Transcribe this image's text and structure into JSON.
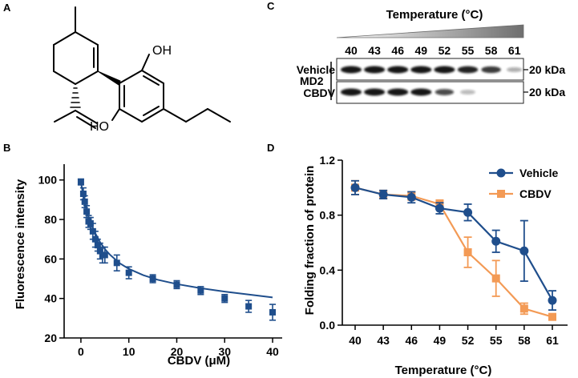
{
  "panels": {
    "a": "A",
    "b": "B",
    "c": "C",
    "d": "D"
  },
  "structure": {
    "oh_top": "OH",
    "oh_left": "HO"
  },
  "western_blot": {
    "title": "Temperature (°C)",
    "temperatures": [
      "40",
      "43",
      "46",
      "49",
      "52",
      "55",
      "58",
      "61"
    ],
    "protein": "MD2",
    "rows": [
      {
        "label": "Vehicle",
        "marker": "20 kDa",
        "intensities": [
          1.0,
          1.0,
          1.0,
          1.0,
          1.0,
          0.95,
          0.85,
          0.35
        ]
      },
      {
        "label": "CBDV",
        "marker": "20 kDa",
        "intensities": [
          1.0,
          1.0,
          1.0,
          1.0,
          0.75,
          0.3,
          0.0,
          0.0
        ]
      }
    ],
    "colors": {
      "band": "#161616",
      "gradient_start": "#ffffff",
      "gradient_end": "#6e6e6e"
    }
  },
  "chart_data": [
    {
      "type": "scatter",
      "title": "",
      "xlabel": "CBDV (μM)",
      "ylabel": "Fluorescence intensity",
      "xlim": [
        -3.5,
        42
      ],
      "ylim": [
        20,
        108
      ],
      "xticks": [
        0,
        10,
        20,
        30,
        40
      ],
      "yticks": [
        20,
        40,
        60,
        80,
        100
      ],
      "x": [
        0,
        0.5,
        0.8,
        1.2,
        1.6,
        2.0,
        2.5,
        3.0,
        3.5,
        4.0,
        4.5,
        5.0,
        7.5,
        10,
        15,
        20,
        25,
        30,
        35,
        40
      ],
      "y": [
        99,
        93,
        89,
        84,
        79,
        78,
        74,
        70,
        67,
        64,
        62,
        62,
        58,
        53,
        50,
        47,
        44,
        40,
        36,
        33
      ],
      "err": [
        1.5,
        3,
        3,
        3,
        3,
        3,
        4,
        4,
        3,
        4,
        4,
        4,
        4,
        3,
        2,
        2,
        2,
        2,
        3,
        4
      ],
      "fit": {
        "x": [
          0,
          0.5,
          1,
          1.5,
          2,
          3,
          4,
          5,
          6,
          8,
          10,
          13,
          16,
          20,
          25,
          30,
          35,
          40
        ],
        "y": [
          99,
          92,
          86.5,
          82,
          78.5,
          73,
          68.5,
          65,
          62.3,
          58,
          55,
          51.8,
          49.5,
          47.3,
          45.2,
          43.5,
          42,
          40.5
        ]
      },
      "color": "#1f4e8c"
    },
    {
      "type": "line",
      "title": "",
      "xlabel": "Temperature (°C)",
      "ylabel": "Folding fraction of protein",
      "categories": [
        "40",
        "43",
        "46",
        "49",
        "52",
        "55",
        "58",
        "61"
      ],
      "ylim": [
        0.0,
        1.2
      ],
      "yticks": [
        "0.0",
        "0.4",
        "0.8",
        "1.2"
      ],
      "legend": "top-right",
      "series": [
        {
          "name": "Vehicle",
          "color": "#1f4e8c",
          "marker": "circle",
          "values": [
            1.0,
            0.95,
            0.93,
            0.85,
            0.82,
            0.61,
            0.54,
            0.18
          ],
          "err": [
            0.05,
            0.03,
            0.04,
            0.04,
            0.06,
            0.08,
            0.22,
            0.07
          ]
        },
        {
          "name": "CBDV",
          "color": "#f39a55",
          "marker": "square",
          "values": [
            1.0,
            0.95,
            0.94,
            0.88,
            0.53,
            0.34,
            0.12,
            0.06
          ],
          "err": [
            0.05,
            0.03,
            0.03,
            0.03,
            0.11,
            0.13,
            0.04,
            0.02
          ]
        }
      ]
    }
  ]
}
